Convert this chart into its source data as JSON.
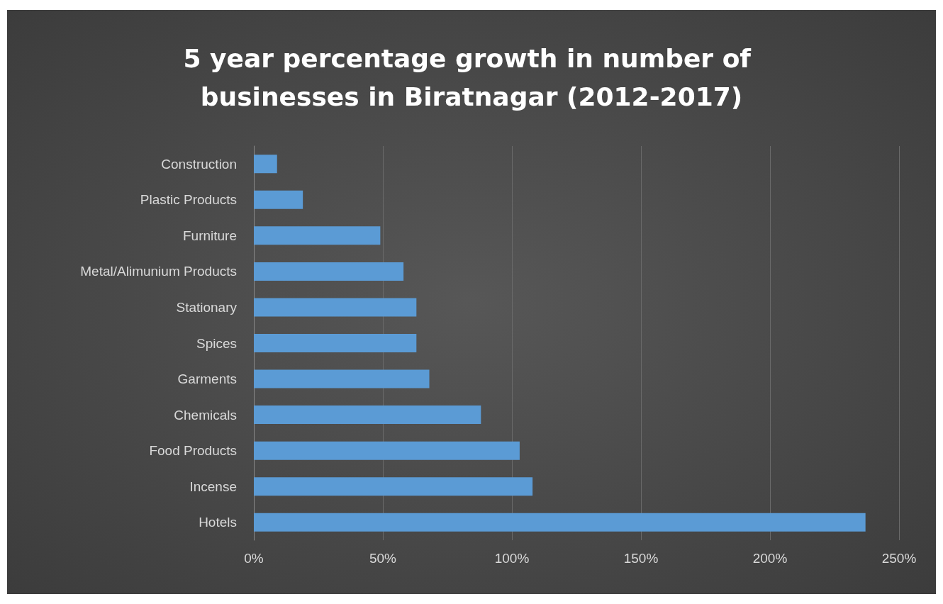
{
  "chart_data": {
    "type": "bar",
    "orientation": "horizontal",
    "title": "5 year percentage growth in number of businesses in Biratnagar (2012-2017)",
    "categories": [
      "Construction",
      "Plastic Products",
      "Furniture",
      "Metal/Alimunium Products",
      "Stationary",
      "Spices",
      "Garments",
      "Chemicals",
      "Food Products",
      "Incense",
      "Hotels"
    ],
    "values": [
      9,
      19,
      49,
      58,
      63,
      63,
      68,
      88,
      103,
      108,
      237
    ],
    "color": "#5b9bd5",
    "xlim": [
      0,
      250
    ],
    "xticks": [
      {
        "value": 0,
        "label": "0%"
      },
      {
        "value": 50,
        "label": "50%"
      },
      {
        "value": 100,
        "label": "100%"
      },
      {
        "value": 150,
        "label": "150%"
      },
      {
        "value": 200,
        "label": "200%"
      },
      {
        "value": 250,
        "label": "250%"
      }
    ],
    "grid": "x"
  }
}
